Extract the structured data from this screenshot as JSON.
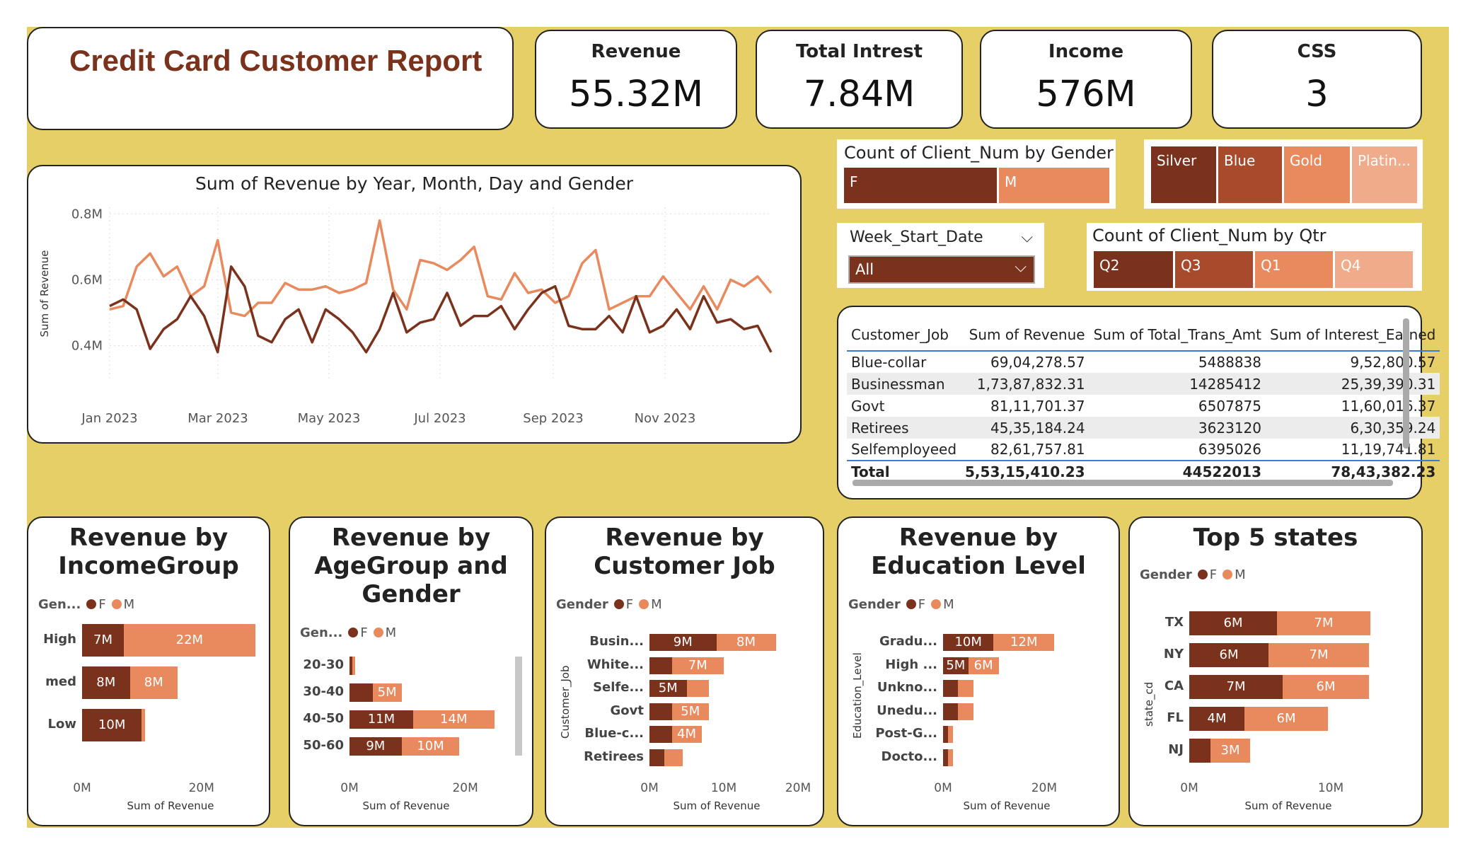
{
  "colors": {
    "bg": "#e6cf67",
    "f": "#7a321c",
    "m": "#e88a5e",
    "silver": "#7a321c",
    "blue": "#a84b2c",
    "gold": "#e88a5e",
    "platinum": "#efab8a"
  },
  "title": "Credit Card Customer Report",
  "kpis": [
    {
      "label": "Revenue",
      "value": "55.32M"
    },
    {
      "label": "Total Intrest",
      "value": "7.84M"
    },
    {
      "label": "Income",
      "value": "576M"
    },
    {
      "label": "CSS",
      "value": "3"
    }
  ],
  "gender_tile": {
    "title": "Count of Client_Num by Gender",
    "f": "F",
    "m": "M"
  },
  "card_tiles": {
    "silver": "Silver",
    "blue": "Blue",
    "gold": "Gold",
    "platinum": "Platin..."
  },
  "week_slicer": {
    "label": "Week_Start_Date",
    "value": "All"
  },
  "qtr_tile": {
    "title": "Count of Client_Num by Qtr",
    "items": [
      "Q2",
      "Q3",
      "Q1",
      "Q4"
    ]
  },
  "table": {
    "headers": [
      "Customer_Job",
      "Sum of Revenue",
      "Sum of Total_Trans_Amt",
      "Sum of Interest_Earned"
    ],
    "rows": [
      [
        "Blue-collar",
        "69,04,278.57",
        "5488838",
        "9,52,800.57"
      ],
      [
        "Businessman",
        "1,73,87,832.31",
        "14285412",
        "25,39,390.31"
      ],
      [
        "Govt",
        "81,11,701.37",
        "6507875",
        "11,60,016.37"
      ],
      [
        "Retirees",
        "45,35,184.24",
        "3623120",
        "6,30,359.24"
      ],
      [
        "Selfemployeed",
        "82,61,757.81",
        "6395026",
        "11,19,741.81"
      ]
    ],
    "total": [
      "Total",
      "5,53,15,410.23",
      "44522013",
      "78,43,382.23"
    ]
  },
  "chart_data": [
    {
      "type": "line",
      "title": "Sum of Revenue by Year, Month, Day and Gender",
      "ylabel": "Sum of Revenue",
      "yticks": [
        "0.4M",
        "0.6M",
        "0.8M"
      ],
      "ylim": [
        0.3,
        0.82
      ],
      "xticks": [
        "Jan 2023",
        "Mar 2023",
        "May 2023",
        "Jul 2023",
        "Sep 2023",
        "Nov 2023"
      ],
      "series": [
        {
          "name": "F",
          "values": [
            0.52,
            0.54,
            0.51,
            0.39,
            0.45,
            0.48,
            0.55,
            0.49,
            0.38,
            0.64,
            0.58,
            0.43,
            0.41,
            0.48,
            0.51,
            0.41,
            0.51,
            0.48,
            0.44,
            0.38,
            0.45,
            0.56,
            0.44,
            0.47,
            0.48,
            0.56,
            0.46,
            0.49,
            0.49,
            0.52,
            0.45,
            0.51,
            0.56,
            0.58,
            0.46,
            0.45,
            0.45,
            0.49,
            0.44,
            0.55,
            0.44,
            0.46,
            0.51,
            0.45,
            0.55,
            0.47,
            0.48,
            0.45,
            0.46,
            0.38
          ]
        },
        {
          "name": "M",
          "values": [
            0.51,
            0.52,
            0.64,
            0.68,
            0.61,
            0.64,
            0.55,
            0.58,
            0.72,
            0.5,
            0.49,
            0.53,
            0.53,
            0.59,
            0.57,
            0.57,
            0.58,
            0.56,
            0.57,
            0.59,
            0.78,
            0.57,
            0.51,
            0.66,
            0.65,
            0.63,
            0.66,
            0.7,
            0.55,
            0.54,
            0.62,
            0.56,
            0.57,
            0.53,
            0.55,
            0.65,
            0.69,
            0.51,
            0.53,
            0.55,
            0.55,
            0.61,
            0.56,
            0.51,
            0.58,
            0.51,
            0.6,
            0.58,
            0.61,
            0.56
          ]
        }
      ]
    },
    {
      "type": "bar",
      "title": "Revenue by IncomeGroup",
      "legend_label": "Gen...",
      "xlabel": "Sum of Revenue",
      "xticks": [
        "0M",
        "20M"
      ],
      "xlim": [
        0,
        32
      ],
      "categories": [
        "High",
        "med",
        "Low"
      ],
      "series": [
        {
          "name": "F",
          "values": [
            7,
            8,
            10
          ],
          "labels": [
            "7M",
            "8M",
            "10M"
          ]
        },
        {
          "name": "M",
          "values": [
            22,
            8,
            0.5
          ],
          "labels": [
            "22M",
            "8M",
            ""
          ]
        }
      ]
    },
    {
      "type": "bar",
      "title": "Revenue by AgeGroup and Gender",
      "legend_label": "Gen...",
      "xlabel": "Sum of Revenue",
      "xticks": [
        "0M",
        "20M"
      ],
      "xlim": [
        0,
        22
      ],
      "categories": [
        "20-30",
        "30-40",
        "40-50",
        "50-60"
      ],
      "series": [
        {
          "name": "F",
          "values": [
            0.5,
            4,
            11,
            9
          ],
          "labels": [
            "",
            "",
            "11M",
            "9M"
          ]
        },
        {
          "name": "M",
          "values": [
            0.5,
            5,
            14,
            10
          ],
          "labels": [
            "",
            "5M",
            "14M",
            "10M"
          ]
        }
      ]
    },
    {
      "type": "bar",
      "title": "Revenue by Customer Job",
      "legend_label": "Gender",
      "ylabel": "Customer_Job",
      "xlabel": "Sum of Revenue",
      "xticks": [
        "0M",
        "10M",
        "20M"
      ],
      "xlim": [
        0,
        20
      ],
      "categories": [
        "Busin...",
        "White...",
        "Selfe...",
        "Govt",
        "Blue-c...",
        "Retirees"
      ],
      "series": [
        {
          "name": "F",
          "values": [
            9,
            3,
            5,
            3,
            3,
            2
          ],
          "labels": [
            "9M",
            "",
            "5M",
            "",
            "",
            ""
          ]
        },
        {
          "name": "M",
          "values": [
            8,
            7,
            3,
            5,
            4,
            2.5
          ],
          "labels": [
            "8M",
            "7M",
            "",
            "5M",
            "4M",
            ""
          ]
        }
      ]
    },
    {
      "type": "bar",
      "title": "Revenue by Education Level",
      "legend_label": "Gender",
      "ylabel": "Education_Level",
      "xlabel": "Sum of Revenue",
      "xticks": [
        "0M",
        "20M"
      ],
      "xlim": [
        0,
        28
      ],
      "categories": [
        "Gradu...",
        "High ...",
        "Unkno...",
        "Unedu...",
        "Post-G...",
        "Docto..."
      ],
      "series": [
        {
          "name": "F",
          "values": [
            10,
            5,
            3,
            3,
            1,
            1
          ],
          "labels": [
            "10M",
            "5M",
            "",
            "",
            "",
            ""
          ]
        },
        {
          "name": "M",
          "values": [
            12,
            6,
            3,
            3,
            1,
            1
          ],
          "labels": [
            "12M",
            "6M",
            "",
            "",
            "",
            ""
          ]
        }
      ]
    },
    {
      "type": "bar",
      "title": "Top 5 states",
      "legend_label": "Gender",
      "ylabel": "state_cd",
      "xlabel": "Sum of Revenue",
      "xticks": [
        "0M",
        "10M"
      ],
      "xlim": [
        0,
        15
      ],
      "categories": [
        "TX",
        "NY",
        "CA",
        "FL",
        "NJ"
      ],
      "series": [
        {
          "name": "F",
          "values": [
            6.2,
            5.6,
            6.6,
            3.9,
            1.5
          ],
          "labels": [
            "6M",
            "6M",
            "7M",
            "4M",
            ""
          ]
        },
        {
          "name": "M",
          "values": [
            6.6,
            7.1,
            6.1,
            5.9,
            2.8
          ],
          "labels": [
            "7M",
            "7M",
            "6M",
            "6M",
            "3M"
          ]
        }
      ]
    }
  ]
}
